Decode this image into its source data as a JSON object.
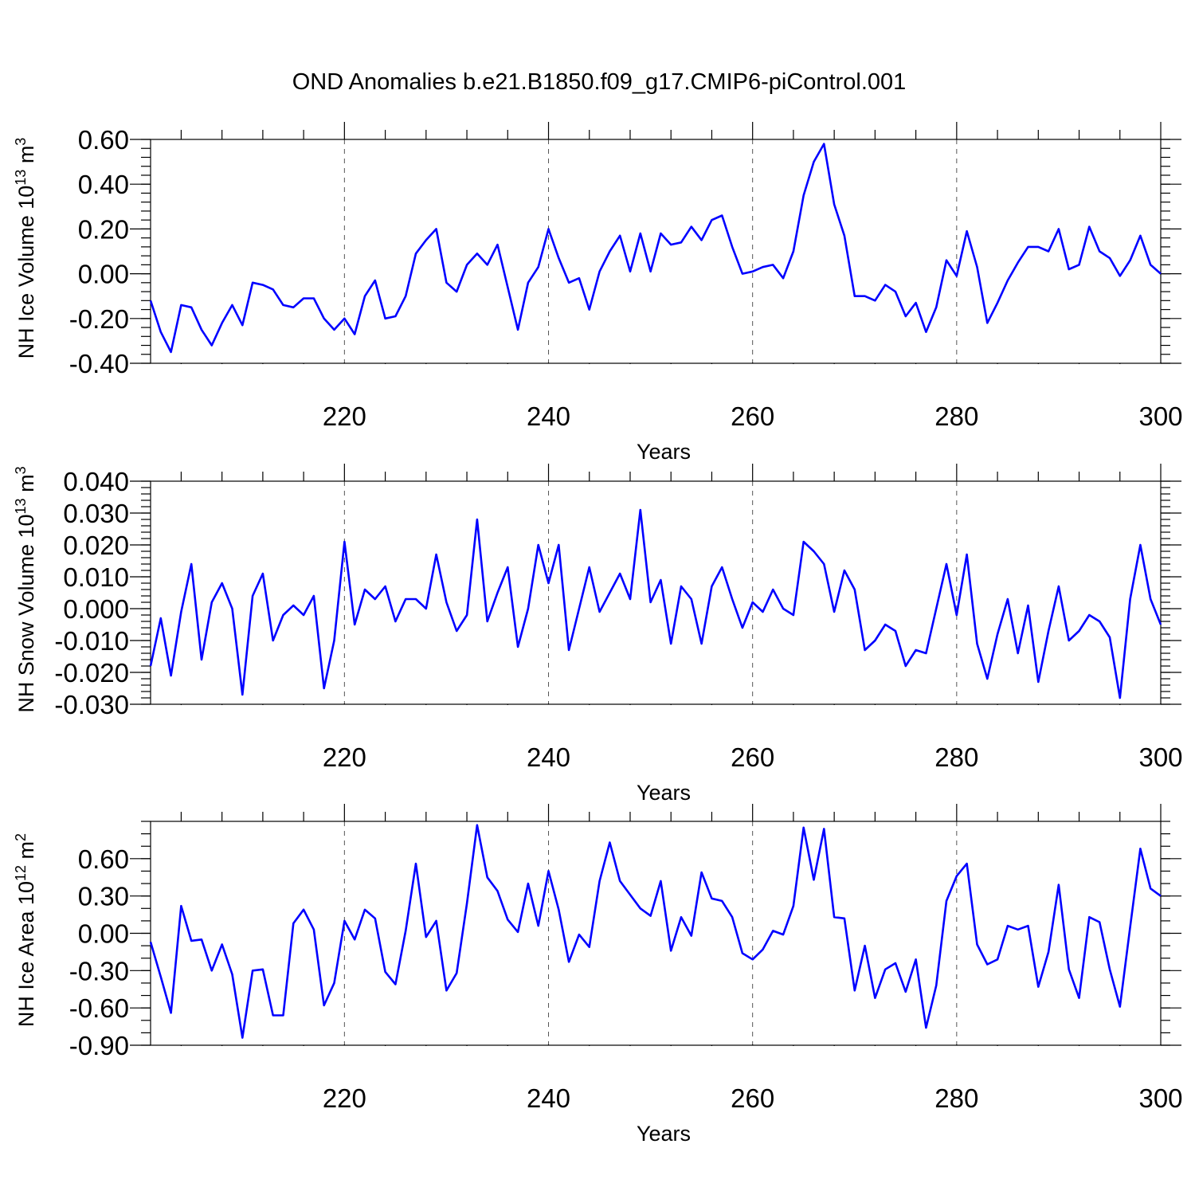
{
  "title": "OND Anomalies b.e21.B1850.f09_g17.CMIP6-piControl.001",
  "chart_data": [
    {
      "type": "line",
      "name": "ice-volume",
      "ylabel": "NH Ice Volume 10",
      "yunit_exp": "13",
      "yunit_tail": " m",
      "yunit_pow": "3",
      "xlabel": "Years",
      "xlim": [
        201,
        300
      ],
      "ylim": [
        -0.4,
        0.6
      ],
      "yticks": [
        -0.4,
        -0.2,
        0.0,
        0.2,
        0.4,
        0.6
      ],
      "ytick_labels": [
        "-0.40",
        "-0.20",
        "0.00",
        "0.20",
        "0.40",
        "0.60"
      ],
      "yminor_step": 0.04,
      "xticks": [
        220,
        240,
        260,
        280,
        300
      ],
      "xtick_labels": [
        "220",
        "240",
        "260",
        "280",
        "300"
      ],
      "grid": true,
      "x_start": 201,
      "values": [
        -0.12,
        -0.26,
        -0.35,
        -0.14,
        -0.15,
        -0.25,
        -0.32,
        -0.22,
        -0.14,
        -0.23,
        -0.04,
        -0.05,
        -0.07,
        -0.14,
        -0.15,
        -0.11,
        -0.11,
        -0.2,
        -0.25,
        -0.2,
        -0.27,
        -0.1,
        -0.03,
        -0.2,
        -0.19,
        -0.1,
        0.09,
        0.15,
        0.2,
        -0.04,
        -0.08,
        0.04,
        0.09,
        0.04,
        0.13,
        -0.06,
        -0.25,
        -0.04,
        0.03,
        0.2,
        0.07,
        -0.04,
        -0.02,
        -0.16,
        0.01,
        0.1,
        0.17,
        0.01,
        0.18,
        0.01,
        0.18,
        0.13,
        0.14,
        0.21,
        0.15,
        0.24,
        0.26,
        0.12,
        0.0,
        0.01,
        0.03,
        0.04,
        -0.02,
        0.1,
        0.35,
        0.5,
        0.58,
        0.31,
        0.17,
        -0.1,
        -0.1,
        -0.12,
        -0.05,
        -0.08,
        -0.19,
        -0.13,
        -0.26,
        -0.15,
        0.06,
        -0.01,
        0.19,
        0.03,
        -0.22,
        -0.13,
        -0.03,
        0.05,
        0.12,
        0.12,
        0.1,
        0.2,
        0.02,
        0.04,
        0.21,
        0.1,
        0.07,
        -0.01,
        0.06,
        0.17,
        0.04,
        0.0
      ]
    },
    {
      "type": "line",
      "name": "snow-volume",
      "ylabel": "NH Snow Volume 10",
      "yunit_exp": "13",
      "yunit_tail": " m",
      "yunit_pow": "3",
      "xlabel": "Years",
      "xlim": [
        201,
        300
      ],
      "ylim": [
        -0.03,
        0.04
      ],
      "yticks": [
        -0.03,
        -0.02,
        -0.01,
        0.0,
        0.01,
        0.02,
        0.03,
        0.04
      ],
      "ytick_labels": [
        "-0.030",
        "-0.020",
        "-0.010",
        "0.000",
        "0.010",
        "0.020",
        "0.030",
        "0.040"
      ],
      "yminor_step": 0.002,
      "xticks": [
        220,
        240,
        260,
        280,
        300
      ],
      "xtick_labels": [
        "220",
        "240",
        "260",
        "280",
        "300"
      ],
      "grid": true,
      "x_start": 201,
      "values": [
        -0.018,
        -0.003,
        -0.021,
        -0.001,
        0.014,
        -0.016,
        0.002,
        0.008,
        0.0,
        -0.027,
        0.004,
        0.011,
        -0.01,
        -0.002,
        0.001,
        -0.002,
        0.004,
        -0.025,
        -0.01,
        0.021,
        -0.005,
        0.006,
        0.003,
        0.007,
        -0.004,
        0.003,
        0.003,
        0.0,
        0.017,
        0.002,
        -0.007,
        -0.002,
        0.028,
        -0.004,
        0.005,
        0.013,
        -0.012,
        0.0,
        0.02,
        0.008,
        0.02,
        -0.013,
        0.0,
        0.013,
        -0.001,
        0.005,
        0.011,
        0.003,
        0.031,
        0.002,
        0.009,
        -0.011,
        0.007,
        0.003,
        -0.011,
        0.007,
        0.013,
        0.003,
        -0.006,
        0.002,
        -0.001,
        0.006,
        0.0,
        -0.002,
        0.021,
        0.018,
        0.014,
        -0.001,
        0.012,
        0.006,
        -0.013,
        -0.01,
        -0.005,
        -0.007,
        -0.018,
        -0.013,
        -0.014,
        0.0,
        0.014,
        -0.002,
        0.017,
        -0.011,
        -0.022,
        -0.008,
        0.003,
        -0.014,
        0.001,
        -0.023,
        -0.007,
        0.007,
        -0.01,
        -0.007,
        -0.002,
        -0.004,
        -0.009,
        -0.028,
        0.003,
        0.02,
        0.003,
        -0.005
      ]
    },
    {
      "type": "line",
      "name": "ice-area",
      "ylabel": "NH Ice Area 10",
      "yunit_exp": "12",
      "yunit_tail": " m",
      "yunit_pow": "2",
      "xlabel": "Years",
      "xlim": [
        201,
        300
      ],
      "ylim": [
        -0.9,
        0.9
      ],
      "yticks": [
        -0.9,
        -0.6,
        -0.3,
        0.0,
        0.3,
        0.6
      ],
      "ytick_labels": [
        "-0.90",
        "-0.60",
        "-0.30",
        "0.00",
        "0.30",
        "0.60"
      ],
      "yminor_step": 0.1,
      "xticks": [
        220,
        240,
        260,
        280,
        300
      ],
      "xtick_labels": [
        "220",
        "240",
        "260",
        "280",
        "300"
      ],
      "grid": true,
      "x_start": 201,
      "values": [
        -0.07,
        -0.35,
        -0.64,
        0.22,
        -0.06,
        -0.05,
        -0.3,
        -0.09,
        -0.33,
        -0.84,
        -0.3,
        -0.29,
        -0.66,
        -0.66,
        0.08,
        0.19,
        0.03,
        -0.58,
        -0.4,
        0.1,
        -0.05,
        0.19,
        0.12,
        -0.31,
        -0.41,
        0.02,
        0.56,
        -0.03,
        0.1,
        -0.46,
        -0.32,
        0.24,
        0.87,
        0.45,
        0.34,
        0.11,
        0.01,
        0.4,
        0.06,
        0.5,
        0.19,
        -0.23,
        -0.01,
        -0.11,
        0.42,
        0.73,
        0.42,
        0.31,
        0.2,
        0.14,
        0.42,
        -0.14,
        0.13,
        -0.02,
        0.49,
        0.28,
        0.26,
        0.13,
        -0.16,
        -0.21,
        -0.13,
        0.02,
        -0.01,
        0.22,
        0.85,
        0.43,
        0.84,
        0.13,
        0.12,
        -0.46,
        -0.1,
        -0.52,
        -0.29,
        -0.24,
        -0.47,
        -0.21,
        -0.76,
        -0.42,
        0.26,
        0.46,
        0.56,
        -0.09,
        -0.25,
        -0.21,
        0.06,
        0.03,
        0.06,
        -0.43,
        -0.15,
        0.39,
        -0.29,
        -0.52,
        0.13,
        0.09,
        -0.29,
        -0.59,
        0.05,
        0.68,
        0.36,
        0.3
      ]
    }
  ]
}
